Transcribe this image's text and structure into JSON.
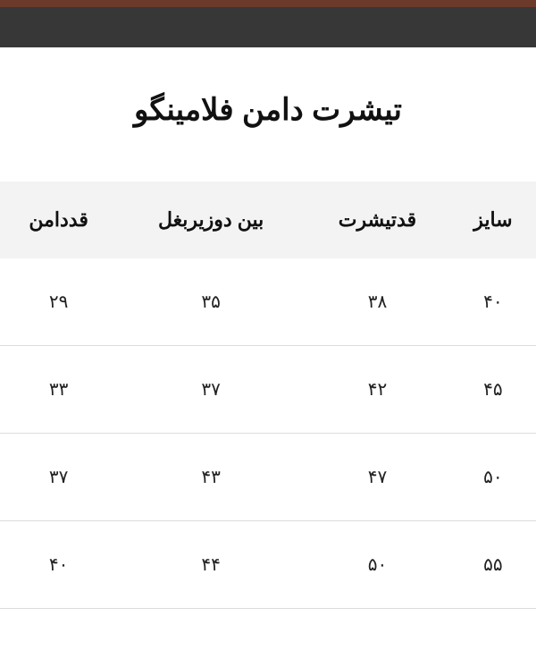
{
  "title": "تیشرت دامن فلامینگو",
  "table": {
    "type": "table",
    "background_color": "#ffffff",
    "header_bg": "#f3f3f3",
    "border_color": "#dcdcdc",
    "text_color": "#111111",
    "title_fontsize": 34,
    "header_fontsize": 22,
    "cell_fontsize": 20,
    "columns": [
      "سایز",
      "قدتیشرت",
      "بین دوزیربغل",
      "قددامن"
    ],
    "rows": [
      [
        "۴۰",
        "۳۸",
        "۳۵",
        "۲۹"
      ],
      [
        "۴۵",
        "۴۲",
        "۳۷",
        "۳۳"
      ],
      [
        "۵۰",
        "۴۷",
        "۴۳",
        "۳۷"
      ],
      [
        "۵۵",
        "۵۰",
        "۴۴",
        "۴۰"
      ]
    ]
  },
  "topbar": {
    "brown": "#6b3a2a",
    "dark": "#373737"
  }
}
